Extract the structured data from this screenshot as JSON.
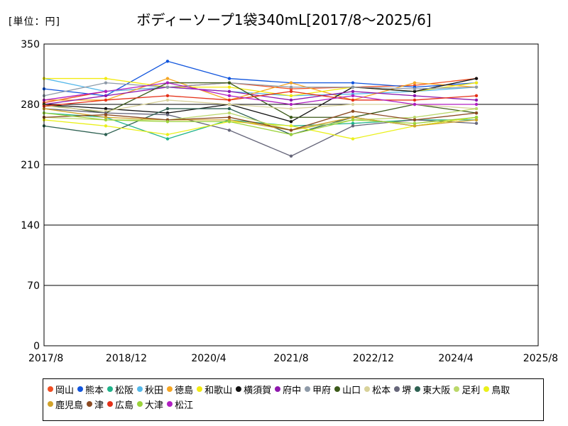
{
  "unit_label": "[単位：円]",
  "title": "ボディーソープ1袋340mL[2017/8～2025/6]",
  "chart_data": {
    "type": "line",
    "title": "ボディーソープ1袋340mL[2017/8～2025/6]",
    "ylabel": "[単位：円]",
    "xlabel": "",
    "x_ticks": [
      "2017/8",
      "2018/12",
      "2020/4",
      "2021/8",
      "2022/12",
      "2024/4",
      "2025/8"
    ],
    "y_ticks": [
      0,
      70,
      140,
      210,
      280,
      350
    ],
    "ylim": [
      0,
      350
    ],
    "xlim": [
      "2017/8",
      "2025/8"
    ],
    "grid": "horizontal",
    "legend_position": "bottom",
    "x": [
      "2017/8",
      "2018/8",
      "2019/8",
      "2020/8",
      "2021/8",
      "2022/8",
      "2023/8",
      "2024/8"
    ],
    "series": [
      {
        "name": "岡山",
        "color": "#f04e23",
        "values": [
          282,
          295,
          300,
          305,
          298,
          300,
          302,
          310
        ]
      },
      {
        "name": "熊本",
        "color": "#1155dd",
        "values": [
          298,
          290,
          330,
          310,
          305,
          305,
          300,
          305
        ]
      },
      {
        "name": "松阪",
        "color": "#20b38a",
        "values": [
          270,
          265,
          240,
          262,
          255,
          258,
          262,
          262
        ]
      },
      {
        "name": "秋田",
        "color": "#55b8ea",
        "values": [
          310,
          295,
          300,
          295,
          290,
          292,
          295,
          300
        ]
      },
      {
        "name": "徳島",
        "color": "#f5a623",
        "values": [
          285,
          285,
          310,
          285,
          305,
          285,
          305,
          300
        ]
      },
      {
        "name": "和歌山",
        "color": "#f2ea12",
        "values": [
          310,
          310,
          300,
          300,
          290,
          300,
          295,
          305
        ]
      },
      {
        "name": "横須賀",
        "color": "#111111",
        "values": [
          280,
          275,
          270,
          280,
          260,
          300,
          295,
          310
        ]
      },
      {
        "name": "府中",
        "color": "#8e18ad",
        "values": [
          280,
          290,
          300,
          295,
          285,
          295,
          290,
          285
        ]
      },
      {
        "name": "甲府",
        "color": "#8e9aa8",
        "values": [
          290,
          305,
          300,
          305,
          300,
          300,
          298,
          300
        ]
      },
      {
        "name": "山口",
        "color": "#3c5a1a",
        "values": [
          280,
          270,
          305,
          305,
          265,
          265,
          280,
          270
        ]
      },
      {
        "name": "松本",
        "color": "#d8d29a",
        "values": [
          278,
          272,
          285,
          280,
          275,
          280,
          280,
          275
        ]
      },
      {
        "name": "堺",
        "color": "#66667a",
        "values": [
          275,
          270,
          268,
          250,
          220,
          255,
          262,
          258
        ]
      },
      {
        "name": "東大阪",
        "color": "#2e6152",
        "values": [
          255,
          245,
          275,
          275,
          245,
          265,
          255,
          265
        ]
      },
      {
        "name": "足利",
        "color": "#bbd86a",
        "values": [
          265,
          262,
          262,
          270,
          250,
          262,
          265,
          275
        ]
      },
      {
        "name": "鳥取",
        "color": "#eaf01a",
        "values": [
          262,
          255,
          245,
          260,
          255,
          240,
          255,
          265
        ]
      },
      {
        "name": "鹿児島",
        "color": "#d2a32a",
        "values": [
          275,
          265,
          262,
          262,
          250,
          265,
          255,
          262
        ]
      },
      {
        "name": "津",
        "color": "#8b4a22",
        "values": [
          265,
          268,
          262,
          265,
          250,
          272,
          262,
          270
        ]
      },
      {
        "name": "広島",
        "color": "#e53018",
        "values": [
          278,
          285,
          290,
          285,
          295,
          285,
          285,
          290
        ]
      },
      {
        "name": "大津",
        "color": "#9bd33a",
        "values": [
          270,
          262,
          260,
          260,
          245,
          262,
          258,
          265
        ]
      },
      {
        "name": "松江",
        "color": "#b01ec2",
        "values": [
          285,
          295,
          305,
          290,
          280,
          290,
          280,
          280
        ]
      }
    ]
  }
}
